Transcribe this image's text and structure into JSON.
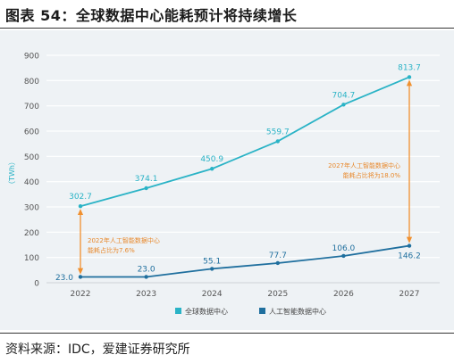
{
  "header": {
    "title": "图表 54：全球数据中心能耗预计将持续增长"
  },
  "footer": {
    "source": "资料来源：IDC，爱建证券研究所"
  },
  "colors": {
    "total": "#2ab3c6",
    "ai": "#1f6f9e",
    "arrow": "#f0902f",
    "annot": "#e8882b",
    "axis_text": "#555555",
    "grid": "#ffffff"
  },
  "chart_data": {
    "type": "line",
    "categories": [
      "2022",
      "2023",
      "2024",
      "2025",
      "2026",
      "2027"
    ],
    "ylabel": "（TWh）",
    "ylim": [
      0,
      900
    ],
    "yticks": [
      0,
      100,
      200,
      300,
      400,
      500,
      600,
      700,
      800,
      900
    ],
    "series": [
      {
        "name": "全球数据中心",
        "values": [
          302.7,
          374.1,
          450.9,
          559.7,
          704.7,
          813.7
        ],
        "labels": [
          "302.7",
          "374.1",
          "450.9",
          "559.7",
          "704.7",
          "813.7"
        ]
      },
      {
        "name": "人工智能数据中心",
        "values": [
          23.0,
          23.0,
          55.1,
          77.7,
          106.0,
          146.2
        ],
        "labels": [
          "23.0",
          "23.0",
          "55.1",
          "77.7",
          "106.0",
          "146.2"
        ]
      }
    ],
    "annotations": [
      {
        "lines": [
          "2022年人工智能数据中心",
          "能耗占比为7.6%"
        ],
        "category": "2022",
        "from": 23.0,
        "to": 302.7
      },
      {
        "lines": [
          "2027年人工智能数据中心",
          "能耗占比将为18.0%"
        ],
        "category": "2027",
        "from": 146.2,
        "to": 813.7
      }
    ],
    "legend": "bottom",
    "grid": true
  }
}
